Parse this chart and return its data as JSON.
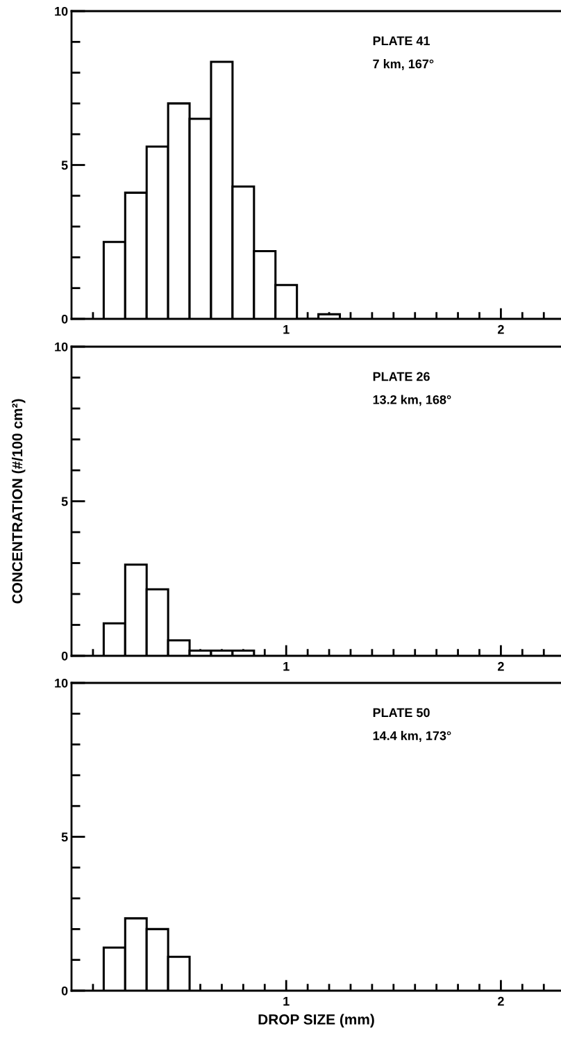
{
  "chart_data": [
    {
      "type": "histogram",
      "annotations": [
        "PLATE 41",
        "7 km, 167°"
      ],
      "bins": [
        0.15,
        0.25,
        0.35,
        0.45,
        0.55,
        0.65,
        0.75,
        0.85,
        0.95,
        1.05,
        1.15,
        1.25
      ],
      "values": [
        2.5,
        4.1,
        5.6,
        7.0,
        6.5,
        8.35,
        4.3,
        2.2,
        1.1,
        0,
        0.15
      ],
      "color": "#ffffff",
      "xlim": [
        0,
        2.28
      ],
      "xticks": [
        {
          "value": 0.1,
          "label": null
        },
        {
          "value": 0.2,
          "label": null
        },
        {
          "value": 0.3,
          "label": null
        },
        {
          "value": 0.4,
          "label": null
        },
        {
          "value": 0.5,
          "label": null
        },
        {
          "value": 0.6,
          "label": null
        },
        {
          "value": 0.7,
          "label": null
        },
        {
          "value": 0.8,
          "label": null
        },
        {
          "value": 0.9,
          "label": null
        },
        1,
        {
          "value": 1.1,
          "label": null
        },
        {
          "value": 1.2,
          "label": null
        },
        {
          "value": 1.3,
          "label": null
        },
        {
          "value": 1.4,
          "label": null
        },
        {
          "value": 1.5,
          "label": null
        },
        {
          "value": 1.6,
          "label": null
        },
        {
          "value": 1.7,
          "label": null
        },
        {
          "value": 1.8,
          "label": null
        },
        {
          "value": 1.9,
          "label": null
        },
        2,
        {
          "value": 2.1,
          "label": null
        },
        {
          "value": 2.2,
          "label": null
        }
      ],
      "ylim": [
        0,
        10
      ],
      "yticks": [
        0,
        {
          "value": 1,
          "label": null
        },
        {
          "value": 2,
          "label": null
        },
        {
          "value": 3,
          "label": null
        },
        {
          "value": 4,
          "label": null
        },
        5,
        {
          "value": 6,
          "label": null
        },
        {
          "value": 7,
          "label": null
        },
        {
          "value": 8,
          "label": null
        },
        {
          "value": 9,
          "label": null
        },
        10
      ],
      "grid": false
    },
    {
      "type": "histogram",
      "ylabel": "CONCENTRATION (#/100 cm²)",
      "annotations": [
        "PLATE 26",
        "13.2 km, 168°"
      ],
      "bins": [
        0.15,
        0.25,
        0.35,
        0.45,
        0.55,
        0.65,
        0.75,
        0.85
      ],
      "values": [
        1.05,
        2.95,
        2.15,
        0.5,
        0.17,
        0.17,
        0.17
      ],
      "color": "#ffffff",
      "xlim": [
        0,
        2.28
      ],
      "xticks": [
        {
          "value": 0.1,
          "label": null
        },
        {
          "value": 0.2,
          "label": null
        },
        {
          "value": 0.3,
          "label": null
        },
        {
          "value": 0.4,
          "label": null
        },
        {
          "value": 0.5,
          "label": null
        },
        {
          "value": 0.6,
          "label": null
        },
        {
          "value": 0.7,
          "label": null
        },
        {
          "value": 0.8,
          "label": null
        },
        {
          "value": 0.9,
          "label": null
        },
        1,
        {
          "value": 1.1,
          "label": null
        },
        {
          "value": 1.2,
          "label": null
        },
        {
          "value": 1.3,
          "label": null
        },
        {
          "value": 1.4,
          "label": null
        },
        {
          "value": 1.5,
          "label": null
        },
        {
          "value": 1.6,
          "label": null
        },
        {
          "value": 1.7,
          "label": null
        },
        {
          "value": 1.8,
          "label": null
        },
        {
          "value": 1.9,
          "label": null
        },
        2,
        {
          "value": 2.1,
          "label": null
        },
        {
          "value": 2.2,
          "label": null
        }
      ],
      "ylim": [
        0,
        10
      ],
      "yticks": [
        0,
        {
          "value": 1,
          "label": null
        },
        {
          "value": 2,
          "label": null
        },
        {
          "value": 3,
          "label": null
        },
        {
          "value": 4,
          "label": null
        },
        5,
        {
          "value": 6,
          "label": null
        },
        {
          "value": 7,
          "label": null
        },
        {
          "value": 8,
          "label": null
        },
        {
          "value": 9,
          "label": null
        },
        10
      ],
      "grid": false
    },
    {
      "type": "histogram",
      "xlabel": "DROP SIZE (mm)",
      "annotations": [
        "PLATE 50",
        "14.4 km, 173°"
      ],
      "bins": [
        0.15,
        0.25,
        0.35,
        0.45,
        0.55
      ],
      "values": [
        1.4,
        2.35,
        2.0,
        1.1
      ],
      "color": "#ffffff",
      "xlim": [
        0,
        2.28
      ],
      "xticks": [
        {
          "value": 0.1,
          "label": null
        },
        {
          "value": 0.2,
          "label": null
        },
        {
          "value": 0.3,
          "label": null
        },
        {
          "value": 0.4,
          "label": null
        },
        {
          "value": 0.5,
          "label": null
        },
        {
          "value": 0.6,
          "label": null
        },
        {
          "value": 0.7,
          "label": null
        },
        {
          "value": 0.8,
          "label": null
        },
        {
          "value": 0.9,
          "label": null
        },
        1,
        {
          "value": 1.1,
          "label": null
        },
        {
          "value": 1.2,
          "label": null
        },
        {
          "value": 1.3,
          "label": null
        },
        {
          "value": 1.4,
          "label": null
        },
        {
          "value": 1.5,
          "label": null
        },
        {
          "value": 1.6,
          "label": null
        },
        {
          "value": 1.7,
          "label": null
        },
        {
          "value": 1.8,
          "label": null
        },
        {
          "value": 1.9,
          "label": null
        },
        2,
        {
          "value": 2.1,
          "label": null
        },
        {
          "value": 2.2,
          "label": null
        }
      ],
      "ylim": [
        0,
        10
      ],
      "yticks": [
        0,
        {
          "value": 1,
          "label": null
        },
        {
          "value": 2,
          "label": null
        },
        {
          "value": 3,
          "label": null
        },
        {
          "value": 4,
          "label": null
        },
        5,
        {
          "value": 6,
          "label": null
        },
        {
          "value": 7,
          "label": null
        },
        {
          "value": 8,
          "label": null
        },
        {
          "value": 9,
          "label": null
        },
        10
      ],
      "grid": false
    }
  ]
}
